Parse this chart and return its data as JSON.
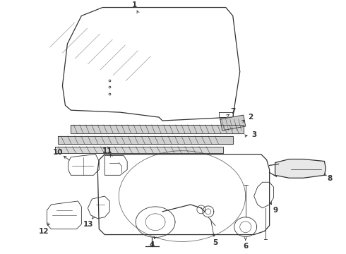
{
  "bg_color": "#ffffff",
  "line_color": "#333333",
  "label_color": "#111111",
  "lw_main": 0.9,
  "lw_thin": 0.6,
  "lw_hatch": 0.4
}
